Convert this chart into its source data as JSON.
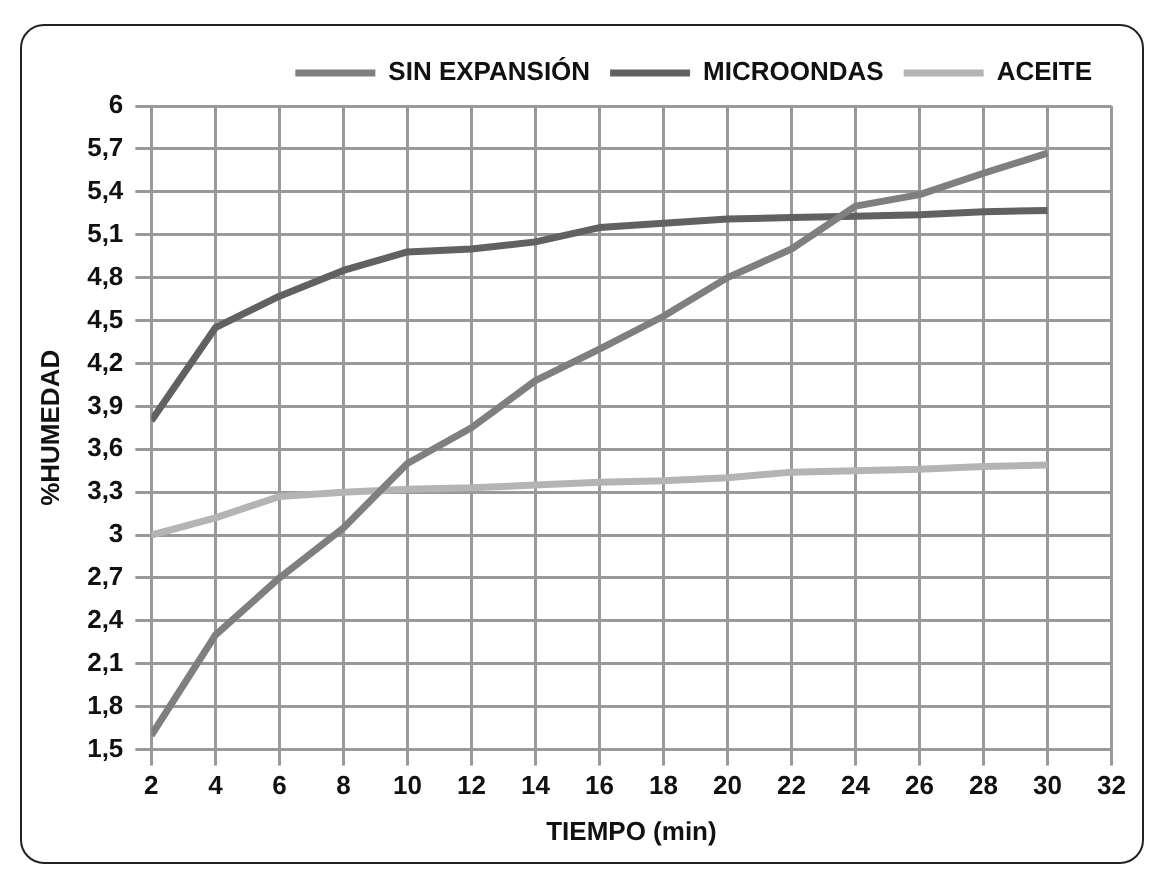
{
  "chart_data": {
    "type": "line",
    "xlabel": "TIEMPO (min)",
    "ylabel": "%HUMEDAD",
    "x": [
      2,
      4,
      6,
      8,
      10,
      12,
      14,
      16,
      18,
      20,
      22,
      24,
      26,
      28,
      30
    ],
    "series": [
      {
        "name": "SIN EXPANSIÓN",
        "color": "#7f7f7f",
        "values": [
          1.6,
          2.3,
          2.7,
          3.05,
          3.5,
          3.75,
          4.08,
          4.3,
          4.53,
          4.8,
          5.0,
          5.3,
          5.38,
          5.53,
          5.67
        ]
      },
      {
        "name": "MICROONDAS",
        "color": "#616161",
        "values": [
          3.8,
          4.45,
          4.67,
          4.85,
          4.98,
          5.0,
          5.05,
          5.15,
          5.18,
          5.21,
          5.22,
          5.23,
          5.24,
          5.26,
          5.27
        ]
      },
      {
        "name": "ACEITE",
        "color": "#b4b4b4",
        "values": [
          3.0,
          3.12,
          3.27,
          3.3,
          3.32,
          3.33,
          3.35,
          3.37,
          3.38,
          3.4,
          3.44,
          3.45,
          3.46,
          3.48,
          3.49
        ]
      }
    ],
    "xlim": [
      2,
      32
    ],
    "xticks": [
      2,
      4,
      6,
      8,
      10,
      12,
      14,
      16,
      18,
      20,
      22,
      24,
      26,
      28,
      30,
      32
    ],
    "ylim": [
      1.5,
      6
    ],
    "yticks": [
      {
        "value": 1.5,
        "label": "1,5"
      },
      {
        "value": 1.8,
        "label": "1,8"
      },
      {
        "value": 2.1,
        "label": "2,1"
      },
      {
        "value": 2.4,
        "label": "2,4"
      },
      {
        "value": 2.7,
        "label": "2,7"
      },
      {
        "value": 3,
        "label": "3"
      },
      {
        "value": 3.3,
        "label": "3,3"
      },
      {
        "value": 3.6,
        "label": "3,6"
      },
      {
        "value": 3.9,
        "label": "3,9"
      },
      {
        "value": 4.2,
        "label": "4,2"
      },
      {
        "value": 4.5,
        "label": "4,5"
      },
      {
        "value": 4.8,
        "label": "4,8"
      },
      {
        "value": 5.1,
        "label": "5,1"
      },
      {
        "value": 5.4,
        "label": "5,4"
      },
      {
        "value": 5.7,
        "label": "5,7"
      },
      {
        "value": 6,
        "label": "6"
      }
    ],
    "grid": true,
    "legend": "top",
    "marker": "none",
    "line_style": "solid"
  }
}
